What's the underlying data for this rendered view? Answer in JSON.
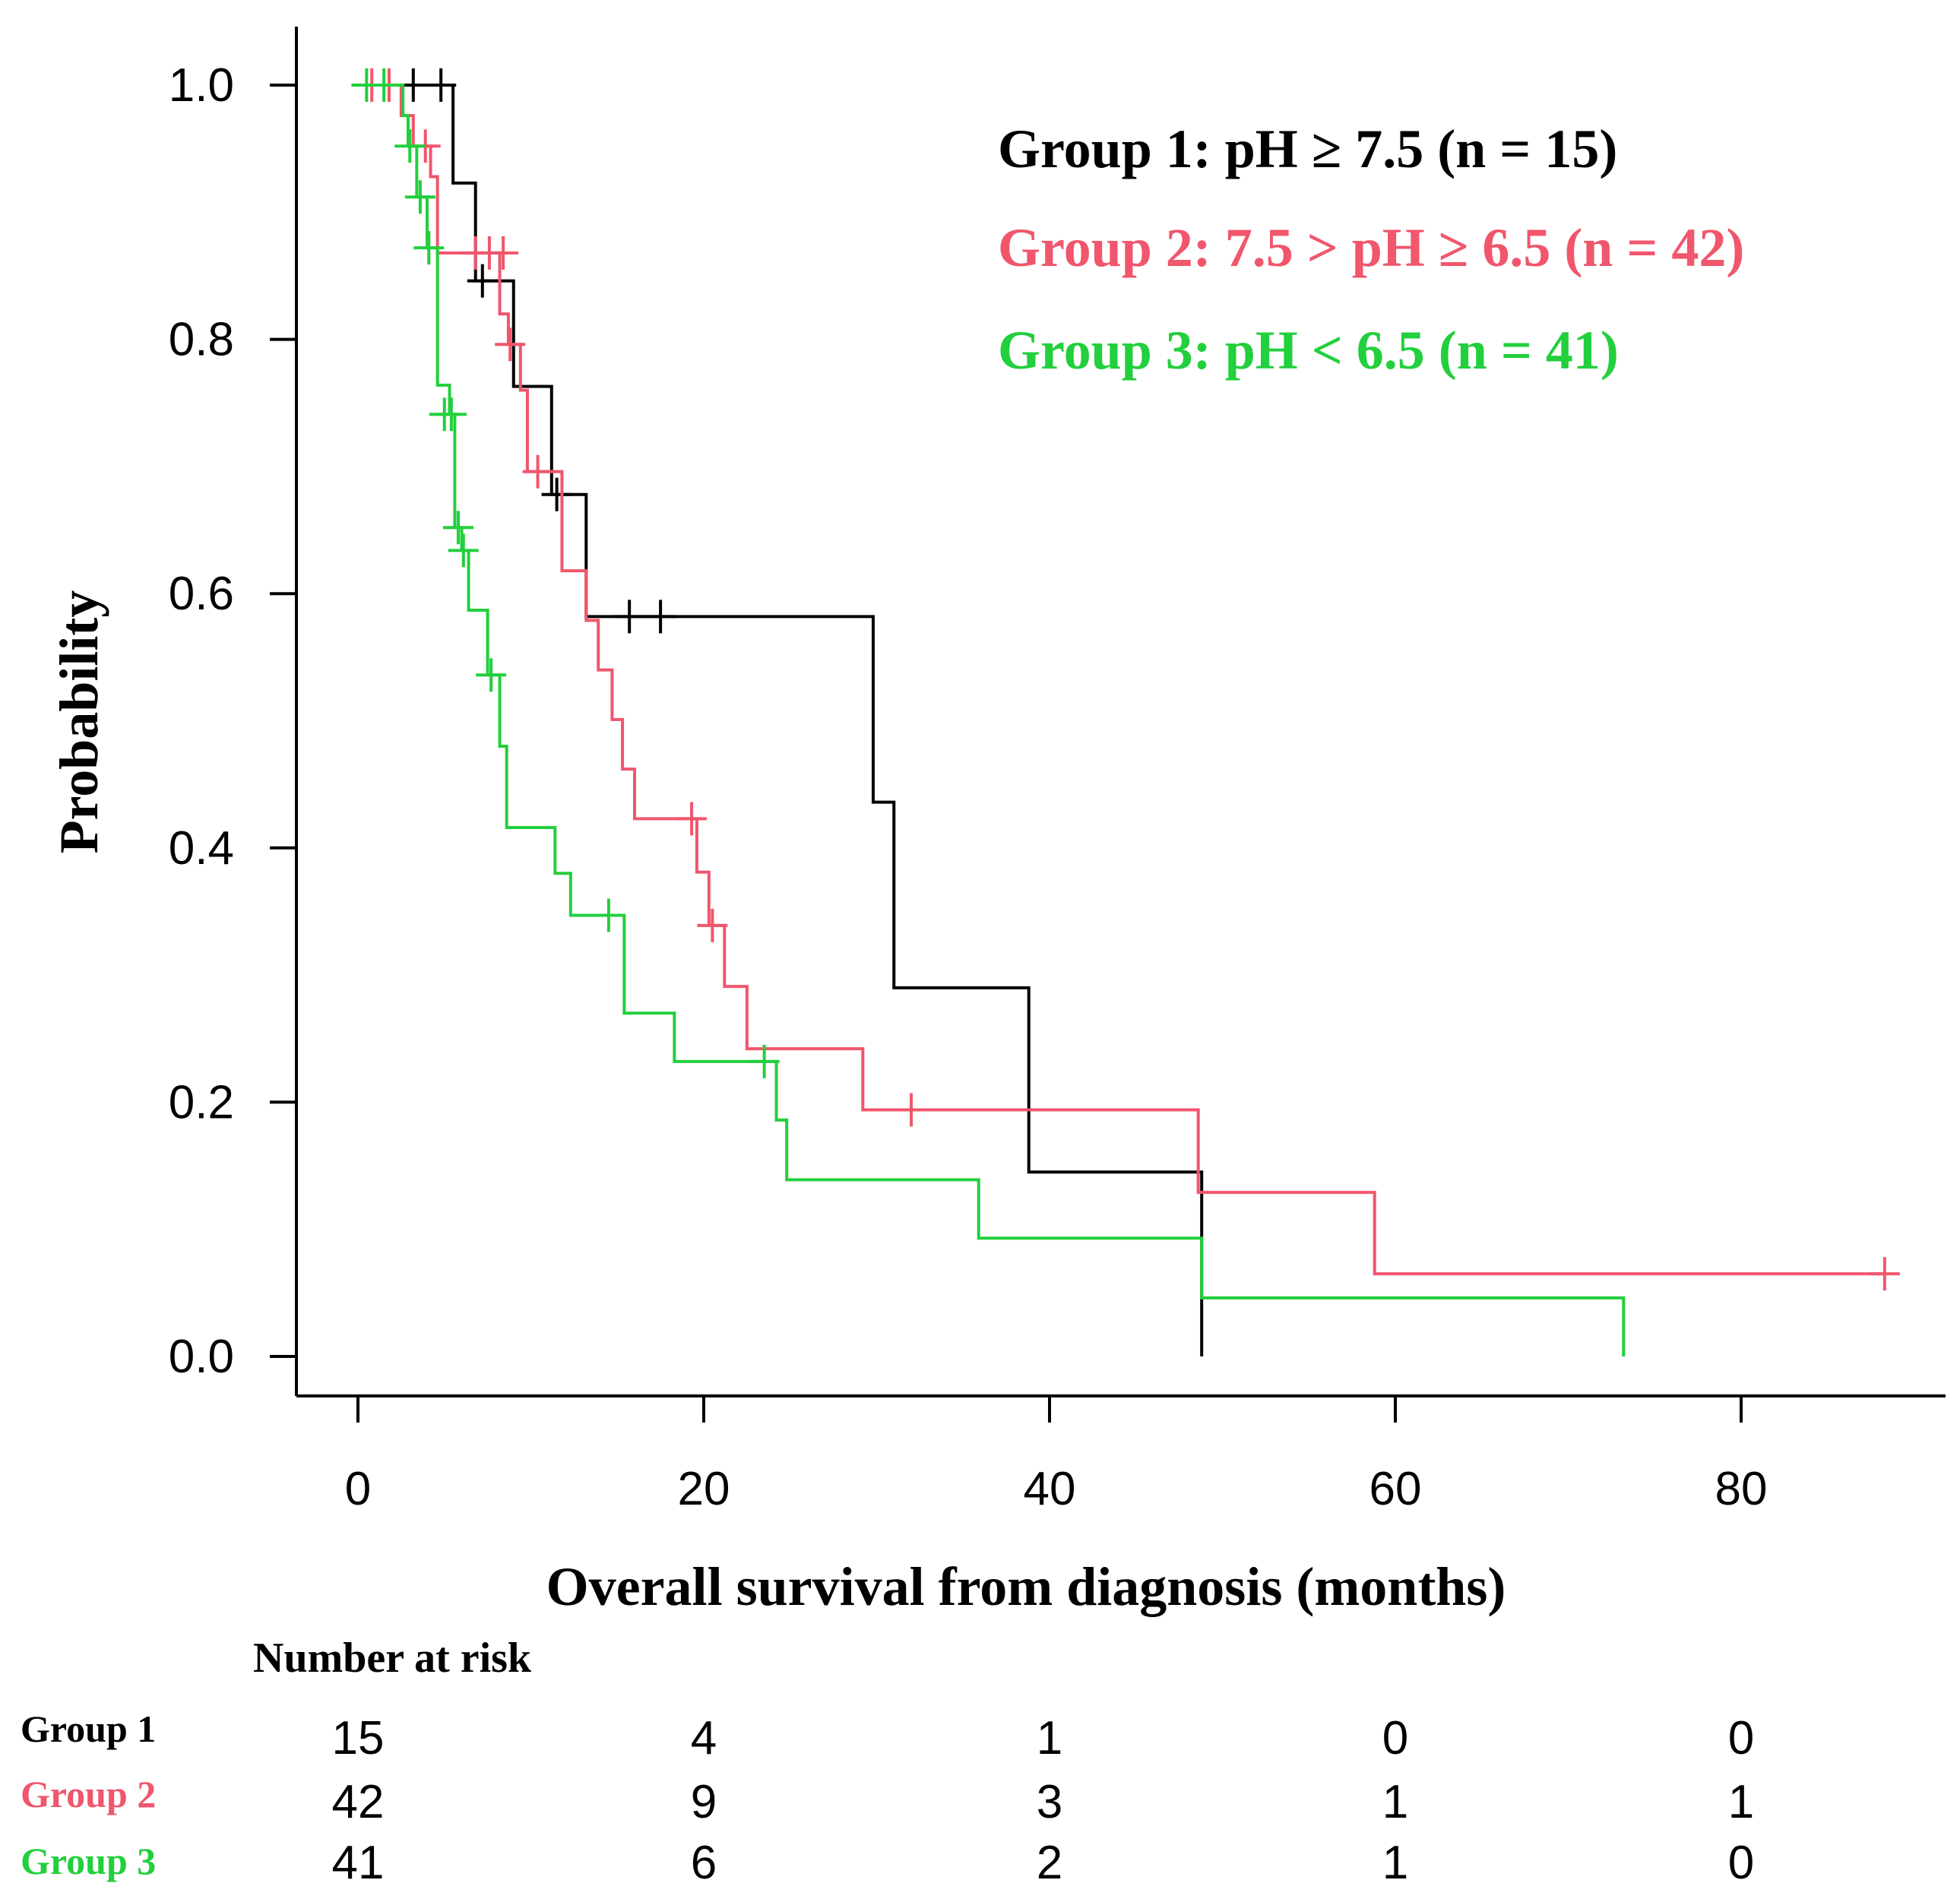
{
  "chart_data": {
    "type": "line",
    "xlabel": "Overall survival from diagnosis (months)",
    "ylabel": "Probability",
    "xlim": [
      -4,
      92
    ],
    "ylim": [
      -0.04,
      1.04
    ],
    "x_ticks": [
      0,
      20,
      40,
      60,
      80
    ],
    "y_ticks": [
      0.0,
      0.2,
      0.4,
      0.6,
      0.8,
      1.0
    ],
    "x_tick_labels": [
      "0",
      "20",
      "40",
      "60",
      "80"
    ],
    "y_tick_labels": [
      "0.0",
      "0.2",
      "0.4",
      "0.6",
      "0.8",
      "1.0"
    ],
    "grid": false,
    "legend_position": "top-right",
    "series": [
      {
        "name": "Group 1: pH ≥ 7.5 (n = 15)",
        "color": "#000000",
        "steps": [
          [
            0.7,
            1.0
          ],
          [
            5.5,
            0.923
          ],
          [
            6.8,
            0.846
          ],
          [
            9.0,
            0.763
          ],
          [
            11.2,
            0.678
          ],
          [
            13.2,
            0.582
          ],
          [
            29.8,
            0.436
          ],
          [
            31.0,
            0.29
          ],
          [
            38.8,
            0.145
          ],
          [
            48.8,
            0.0
          ]
        ],
        "end_x": 48.8,
        "censors": [
          [
            3.2,
            1.0
          ],
          [
            4.8,
            1.0
          ],
          [
            7.2,
            0.846
          ],
          [
            11.5,
            0.678
          ],
          [
            15.7,
            0.582
          ],
          [
            17.5,
            0.582
          ]
        ]
      },
      {
        "name": "Group 2: 7.5 > pH ≥ 6.5 (n = 42)",
        "color": "#f0566c",
        "steps": [
          [
            0.0,
            1.0
          ],
          [
            2.5,
            0.976
          ],
          [
            3.2,
            0.952
          ],
          [
            4.2,
            0.928
          ],
          [
            4.6,
            0.868
          ],
          [
            8.2,
            0.82
          ],
          [
            8.7,
            0.796
          ],
          [
            9.4,
            0.76
          ],
          [
            9.8,
            0.696
          ],
          [
            11.8,
            0.618
          ],
          [
            13.2,
            0.579
          ],
          [
            13.9,
            0.54
          ],
          [
            14.7,
            0.501
          ],
          [
            15.3,
            0.462
          ],
          [
            16.0,
            0.423
          ],
          [
            19.6,
            0.381
          ],
          [
            20.3,
            0.339
          ],
          [
            21.2,
            0.291
          ],
          [
            22.5,
            0.242
          ],
          [
            29.2,
            0.194
          ],
          [
            48.6,
            0.129
          ],
          [
            58.8,
            0.065
          ]
        ],
        "end_x": 88.3,
        "censors": [
          [
            0.8,
            1.0
          ],
          [
            1.8,
            1.0
          ],
          [
            3.9,
            0.952
          ],
          [
            6.8,
            0.868
          ],
          [
            7.6,
            0.868
          ],
          [
            8.4,
            0.868
          ],
          [
            8.8,
            0.796
          ],
          [
            10.4,
            0.696
          ],
          [
            19.3,
            0.423
          ],
          [
            20.5,
            0.339
          ],
          [
            32.0,
            0.194
          ],
          [
            88.3,
            0.065
          ]
        ]
      },
      {
        "name": "Group 3: pH < 6.5 (n = 41)",
        "color": "#22cf3c",
        "steps": [
          [
            0.0,
            1.0
          ],
          [
            2.6,
            0.976
          ],
          [
            2.9,
            0.952
          ],
          [
            3.4,
            0.912
          ],
          [
            4.0,
            0.872
          ],
          [
            4.6,
            0.764
          ],
          [
            5.3,
            0.741
          ],
          [
            5.6,
            0.652
          ],
          [
            6.0,
            0.634
          ],
          [
            6.4,
            0.587
          ],
          [
            7.5,
            0.536
          ],
          [
            8.2,
            0.48
          ],
          [
            8.6,
            0.416
          ],
          [
            11.4,
            0.38
          ],
          [
            12.3,
            0.347
          ],
          [
            15.4,
            0.27
          ],
          [
            18.3,
            0.232
          ],
          [
            24.2,
            0.186
          ],
          [
            24.8,
            0.139
          ],
          [
            35.9,
            0.093
          ],
          [
            48.8,
            0.046
          ]
        ],
        "end_x": 73.2,
        "end_drop_to": 0.0,
        "censors": [
          [
            0.5,
            1.0
          ],
          [
            1.5,
            1.0
          ],
          [
            3.0,
            0.952
          ],
          [
            3.6,
            0.912
          ],
          [
            4.1,
            0.872
          ],
          [
            5.0,
            0.741
          ],
          [
            5.4,
            0.741
          ],
          [
            5.8,
            0.652
          ],
          [
            6.1,
            0.634
          ],
          [
            7.7,
            0.536
          ],
          [
            14.5,
            0.347
          ],
          [
            23.5,
            0.232
          ]
        ]
      }
    ],
    "number_at_risk": {
      "title": "Number at risk",
      "times": [
        0,
        20,
        40,
        60,
        80
      ],
      "rows": [
        {
          "label": "Group 1",
          "color": "#000000",
          "values": [
            "15",
            "4",
            "1",
            "0",
            "0"
          ]
        },
        {
          "label": "Group 2",
          "color": "#f0566c",
          "values": [
            "42",
            "9",
            "3",
            "1",
            "1"
          ]
        },
        {
          "label": "Group 3",
          "color": "#22cf3c",
          "values": [
            "41",
            "6",
            "2",
            "1",
            "0"
          ]
        }
      ]
    }
  }
}
